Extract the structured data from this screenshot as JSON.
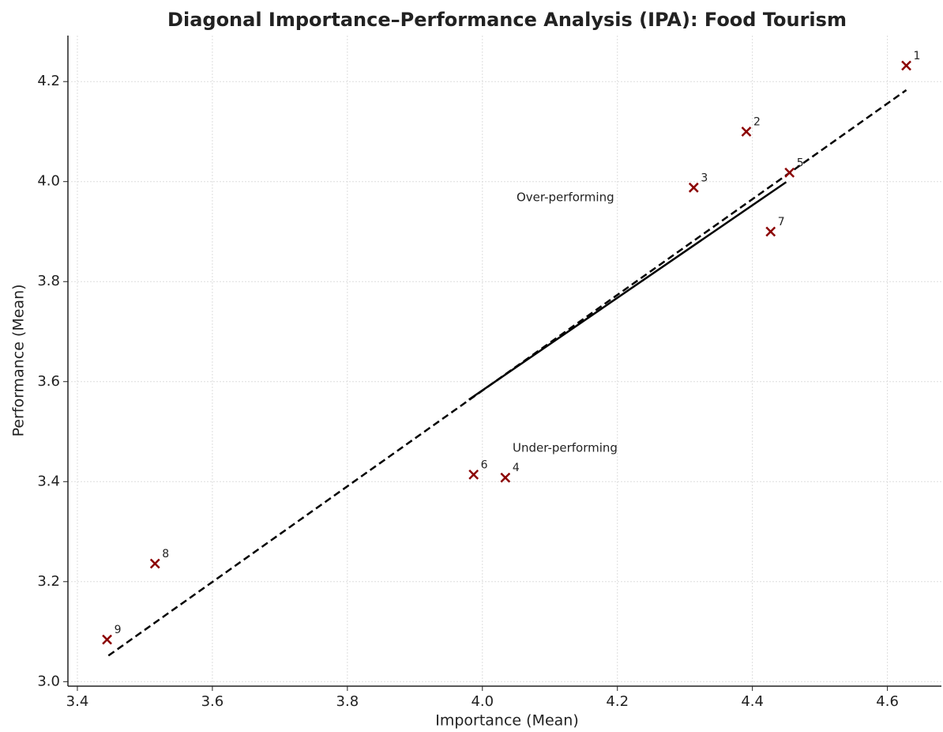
{
  "chart_data": {
    "type": "scatter",
    "title": "Diagonal Importance–Performance Analysis (IPA): Food Tourism",
    "x_label": "Importance (Mean)",
    "y_label": "Performance (Mean)",
    "xlim": [
      3.386,
      4.68
    ],
    "ylim": [
      2.991,
      4.292
    ],
    "xticks": [
      3.4,
      3.6,
      3.8,
      {
        "value": 4,
        "label": "4.0"
      },
      4.2,
      4.4,
      4.6
    ],
    "yticks": [
      {
        "value": 3,
        "label": "3.0"
      },
      3.2,
      3.4,
      3.6,
      3.8,
      {
        "value": 4,
        "label": "4.0"
      },
      4.2
    ],
    "grid": true,
    "series": [
      {
        "color": "#8b0000",
        "labels": [
          "1",
          "2",
          "3",
          "4",
          "5",
          "6",
          "7",
          "8",
          "9"
        ],
        "x": [
          4.628,
          4.391,
          4.313,
          4.034,
          4.455,
          3.987,
          4.427,
          3.515,
          3.444
        ],
        "values": [
          4.232,
          4.1,
          3.988,
          3.408,
          4.018,
          3.414,
          3.9,
          3.236,
          3.084
        ]
      }
    ],
    "lines": [
      {
        "style": "dashed",
        "color": "#000000",
        "x": [
          3.446,
          4.628
        ],
        "values": [
          3.052,
          4.183
        ]
      },
      {
        "style": "solid",
        "color": "#000000",
        "x": [
          3.98,
          4.45
        ],
        "values": [
          3.564,
          3.999
        ]
      }
    ],
    "annotations": [
      {
        "text": "Over-performing",
        "color": "#008000"
      },
      {
        "text": "Under-performing",
        "color": "#ff0000"
      }
    ]
  }
}
